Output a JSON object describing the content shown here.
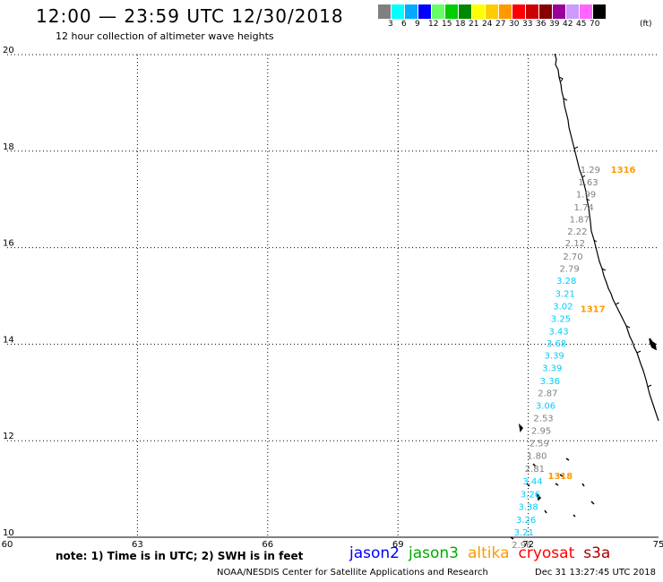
{
  "title": "12:00 — 23:59 UTC 12/30/2018",
  "subtitle": "12 hour collection of altimeter wave heights",
  "color_scale": {
    "labels": [
      "3",
      "6",
      "9",
      "12",
      "15",
      "18",
      "21",
      "24",
      "27",
      "30",
      "33",
      "36",
      "39",
      "42",
      "45",
      "70",
      "(ft)"
    ],
    "colors": [
      "#808080",
      "#00ffff",
      "#00aaff",
      "#0000ff",
      "#66ff66",
      "#00cc00",
      "#008800",
      "#ffff00",
      "#ffcc00",
      "#ff9900",
      "#ff0000",
      "#cc0000",
      "#880000",
      "#990099",
      "#cc99ff",
      "#ff66ff",
      "#000000"
    ]
  },
  "map": {
    "lat_labels": [
      "20",
      "18",
      "16",
      "14",
      "12",
      "10"
    ],
    "lon_labels": [
      "60",
      "63",
      "66",
      "69",
      "72",
      "75"
    ],
    "lat_min": 10,
    "lat_max": 20,
    "lon_min": 60,
    "lon_max": 75
  },
  "observations": [
    {
      "value": "1.29",
      "lon": 73.2,
      "lat": 17.55,
      "color": "#808080"
    },
    {
      "value": "1.63",
      "lon": 73.15,
      "lat": 17.29,
      "color": "#808080"
    },
    {
      "value": "1.99",
      "lon": 73.1,
      "lat": 17.04,
      "color": "#808080"
    },
    {
      "value": "1.74",
      "lon": 73.05,
      "lat": 16.77,
      "color": "#808080"
    },
    {
      "value": "1.87",
      "lon": 72.95,
      "lat": 16.52,
      "color": "#808080"
    },
    {
      "value": "2.22",
      "lon": 72.9,
      "lat": 16.27,
      "color": "#808080"
    },
    {
      "value": "2.12",
      "lon": 72.85,
      "lat": 16.03,
      "color": "#808080"
    },
    {
      "value": "2.70",
      "lon": 72.8,
      "lat": 15.75,
      "color": "#808080"
    },
    {
      "value": "2.79",
      "lon": 72.72,
      "lat": 15.5,
      "color": "#808080"
    },
    {
      "value": "3.28",
      "lon": 72.65,
      "lat": 15.25,
      "color": "#00ccff"
    },
    {
      "value": "3.21",
      "lon": 72.62,
      "lat": 14.98,
      "color": "#00ccff"
    },
    {
      "value": "3.02",
      "lon": 72.57,
      "lat": 14.72,
      "color": "#00ccff"
    },
    {
      "value": "3.25",
      "lon": 72.52,
      "lat": 14.46,
      "color": "#00ccff"
    },
    {
      "value": "3.43",
      "lon": 72.47,
      "lat": 14.2,
      "color": "#00ccff"
    },
    {
      "value": "3.68",
      "lon": 72.42,
      "lat": 13.95,
      "color": "#00ccff"
    },
    {
      "value": "3.39",
      "lon": 72.37,
      "lat": 13.7,
      "color": "#00ccff"
    },
    {
      "value": "3.39",
      "lon": 72.32,
      "lat": 13.44,
      "color": "#00ccff"
    },
    {
      "value": "3.36",
      "lon": 72.27,
      "lat": 13.17,
      "color": "#00ccff"
    },
    {
      "value": "2.87",
      "lon": 72.22,
      "lat": 12.92,
      "color": "#808080"
    },
    {
      "value": "3.06",
      "lon": 72.17,
      "lat": 12.66,
      "color": "#00ccff"
    },
    {
      "value": "2.53",
      "lon": 72.12,
      "lat": 12.4,
      "color": "#808080"
    },
    {
      "value": "2.95",
      "lon": 72.07,
      "lat": 12.14,
      "color": "#808080"
    },
    {
      "value": "2.59",
      "lon": 72.02,
      "lat": 11.88,
      "color": "#808080"
    },
    {
      "value": "1.80",
      "lon": 71.97,
      "lat": 11.62,
      "color": "#808080"
    },
    {
      "value": "2.81",
      "lon": 71.92,
      "lat": 11.35,
      "color": "#808080"
    },
    {
      "value": "3.44",
      "lon": 71.87,
      "lat": 11.09,
      "color": "#00ccff"
    },
    {
      "value": "3.26",
      "lon": 71.82,
      "lat": 10.83,
      "color": "#00ccff"
    },
    {
      "value": "3.38",
      "lon": 71.77,
      "lat": 10.57,
      "color": "#00ccff"
    },
    {
      "value": "3.26",
      "lon": 71.72,
      "lat": 10.3,
      "color": "#00ccff"
    },
    {
      "value": "3.21",
      "lon": 71.67,
      "lat": 10.04,
      "color": "#00ccff"
    },
    {
      "value": "2.96",
      "lon": 71.62,
      "lat": 9.78,
      "color": "#808080"
    }
  ],
  "passes": [
    {
      "label": "1316",
      "lon": 73.9,
      "lat": 17.55,
      "color": "#ff9900"
    },
    {
      "label": "1317",
      "lon": 73.2,
      "lat": 14.67,
      "color": "#ff9900"
    },
    {
      "label": "1318",
      "lon": 72.45,
      "lat": 11.21,
      "color": "#ff9900"
    }
  ],
  "note": "note: 1) Time is in UTC; 2) SWH is in feet",
  "missions": [
    {
      "name": "jason2",
      "color": "#0000ff"
    },
    {
      "name": "jason3",
      "color": "#00aa00"
    },
    {
      "name": "altika",
      "color": "#ff9900"
    },
    {
      "name": "cryosat",
      "color": "#ff0000"
    },
    {
      "name": "s3a",
      "color": "#aa0000"
    }
  ],
  "footer_credit": "NOAA/NESDIS Center for Satellite Applications and Research",
  "footer_time": "Dec 31 13:27:45 UTC 2018"
}
